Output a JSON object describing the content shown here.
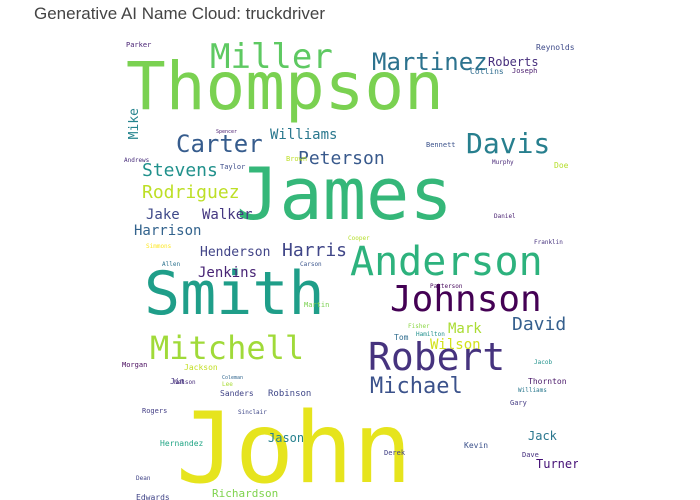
{
  "title": "Generative AI Name Cloud: truckdriver",
  "words": [
    {
      "text": "John",
      "color": "#e6e41d"
    },
    {
      "text": "James",
      "color": "#35b779"
    },
    {
      "text": "Thompson",
      "color": "#7ad151"
    },
    {
      "text": "Smith",
      "color": "#1f9e89"
    },
    {
      "text": "Anderson",
      "color": "#2db27d"
    },
    {
      "text": "Johnson",
      "color": "#440154"
    },
    {
      "text": "Robert",
      "color": "#46337e"
    },
    {
      "text": "Miller",
      "color": "#5ec962"
    },
    {
      "text": "Mitchell",
      "color": "#a0da39"
    },
    {
      "text": "Martinez",
      "color": "#2c728e"
    },
    {
      "text": "Davis",
      "color": "#277f8e"
    },
    {
      "text": "Michael",
      "color": "#3b528b"
    },
    {
      "text": "Carter",
      "color": "#365c8d"
    },
    {
      "text": "Peterson",
      "color": "#38598c"
    },
    {
      "text": "Stevens",
      "color": "#21918c"
    },
    {
      "text": "Rodriguez",
      "color": "#bddf26"
    },
    {
      "text": "David",
      "color": "#355f8d"
    },
    {
      "text": "Harris",
      "color": "#404688"
    },
    {
      "text": "Williams",
      "color": "#2a788e"
    },
    {
      "text": "Harrison",
      "color": "#33638d"
    },
    {
      "text": "Henderson",
      "color": "#414487"
    },
    {
      "text": "Jenkins",
      "color": "#482475"
    },
    {
      "text": "Walker",
      "color": "#453781"
    },
    {
      "text": "Jake",
      "color": "#3e4989"
    },
    {
      "text": "Mark",
      "color": "#aadc32"
    },
    {
      "text": "Wilson",
      "color": "#d2e21b"
    },
    {
      "text": "Roberts",
      "color": "#472f7d"
    },
    {
      "text": "Mike",
      "color": "#25848e"
    },
    {
      "text": "Jason",
      "color": "#26818e"
    },
    {
      "text": "Jack",
      "color": "#2a768e"
    },
    {
      "text": "Richardson",
      "color": "#7fd34e"
    },
    {
      "text": "Turner",
      "color": "#440f76"
    },
    {
      "text": "Jackson",
      "color": "#c2df23"
    },
    {
      "text": "Robinson",
      "color": "#3f4788"
    },
    {
      "text": "Sanders",
      "color": "#404387"
    },
    {
      "text": "Hernandez",
      "color": "#21a585"
    },
    {
      "text": "Thornton",
      "color": "#481668"
    },
    {
      "text": "Kevin",
      "color": "#3b518b"
    },
    {
      "text": "Derek",
      "color": "#424186"
    },
    {
      "text": "Edwards",
      "color": "#414487"
    },
    {
      "text": "Tom",
      "color": "#2f6c8e"
    },
    {
      "text": "Dave",
      "color": "#46307e"
    },
    {
      "text": "Morgan",
      "color": "#46085c"
    },
    {
      "text": "Rogers",
      "color": "#433e85"
    },
    {
      "text": "Martin",
      "color": "#7ad151"
    },
    {
      "text": "Taylor",
      "color": "#3d4d8a"
    },
    {
      "text": "Brown",
      "color": "#bddf26"
    },
    {
      "text": "Doe",
      "color": "#b5de2b"
    },
    {
      "text": "Collins",
      "color": "#2f6c8e"
    },
    {
      "text": "Joseph",
      "color": "#481a6c"
    },
    {
      "text": "Parker",
      "color": "#482173"
    },
    {
      "text": "Reynolds",
      "color": "#3e4a89"
    },
    {
      "text": "Bennett",
      "color": "#3b528b"
    },
    {
      "text": "Murphy",
      "color": "#482878"
    },
    {
      "text": "Daniel",
      "color": "#481f70"
    },
    {
      "text": "Franklin",
      "color": "#46327e"
    },
    {
      "text": "Patterson",
      "color": "#46085c"
    },
    {
      "text": "Simmons",
      "color": "#fde725"
    },
    {
      "text": "Cooper",
      "color": "#b5de2b"
    },
    {
      "text": "Lee",
      "color": "#a8db34"
    },
    {
      "text": "Allen",
      "color": "#2c728e"
    },
    {
      "text": "Jim",
      "color": "#453581"
    },
    {
      "text": "Nelson",
      "color": "#472d7b"
    },
    {
      "text": "Sinclair",
      "color": "#3f4788"
    },
    {
      "text": "Gary",
      "color": "#443b84"
    },
    {
      "text": "Andrews",
      "color": "#472c7a"
    },
    {
      "text": "Jacob",
      "color": "#20928c"
    },
    {
      "text": "Fisher",
      "color": "#8bd646"
    },
    {
      "text": "Coleman",
      "color": "#31668e"
    },
    {
      "text": "Williams",
      "color": "#2a788e"
    },
    {
      "text": "Dean",
      "color": "#414487"
    },
    {
      "text": "Spencer",
      "color": "#481b6d"
    },
    {
      "text": "Hamilton",
      "color": "#21908d"
    },
    {
      "text": "Carson",
      "color": "#3a548c"
    }
  ]
}
